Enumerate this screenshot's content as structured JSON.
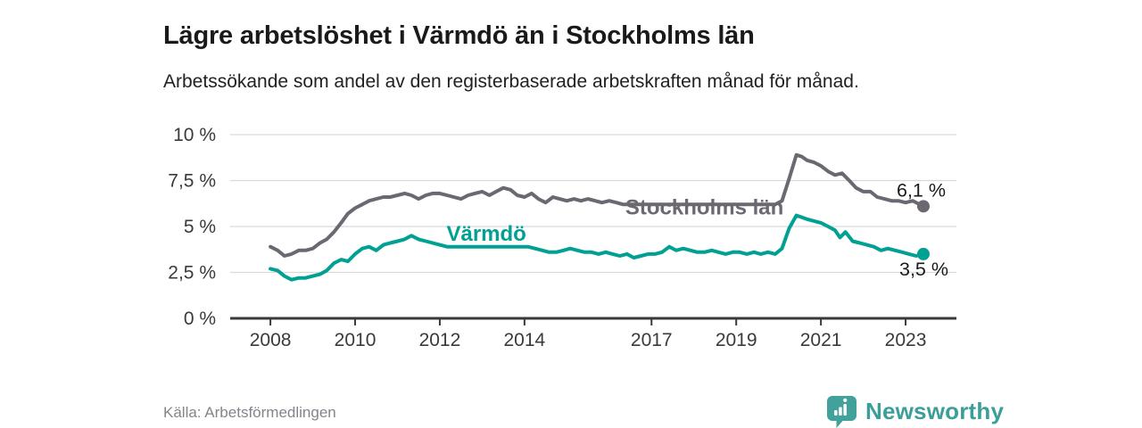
{
  "header": {
    "title": "Lägre arbetslöshet i Värmdö än i Stockholms län",
    "subtitle": "Arbetssökande som andel av den registerbaserade arbetskraften månad för månad."
  },
  "footer": {
    "source": "Källa: Arbetsförmedlingen",
    "brand": "Newsworthy",
    "brand_color": "#3c9e99"
  },
  "chart_data": {
    "type": "line",
    "title": "Lägre arbetslöshet i Värmdö än i Stockholms län",
    "subtitle": "Arbetssökande som andel av den registerbaserade arbetskraften månad för månad.",
    "grid": true,
    "legend_position": "inline",
    "ylim": [
      0,
      10
    ],
    "xlim": [
      2007.05,
      2024.2
    ],
    "y_ticks": [
      {
        "value": 10,
        "label": "10 %"
      },
      {
        "value": 7.5,
        "label": "7,5 %"
      },
      {
        "value": 5,
        "label": "5 %"
      },
      {
        "value": 2.5,
        "label": "2,5 %"
      },
      {
        "value": 0,
        "label": "0 %"
      }
    ],
    "x_ticks": [
      {
        "value": 2008,
        "label": "2008"
      },
      {
        "value": 2010,
        "label": "2010"
      },
      {
        "value": 2012,
        "label": "2012"
      },
      {
        "value": 2014,
        "label": "2014"
      },
      {
        "value": 2017,
        "label": "2017"
      },
      {
        "value": 2019,
        "label": "2019"
      },
      {
        "value": 2021,
        "label": "2021"
      },
      {
        "value": 2023,
        "label": "2023"
      }
    ],
    "axis_color": "#3a3a3a",
    "grid_color": "#d9d9d9",
    "series": [
      {
        "name": "Stockholms län",
        "color": "#6c6872",
        "end_label": "6,1 %",
        "end_value": 6.1,
        "inline_label": {
          "year": 2018.25,
          "value": 6.05
        },
        "label_gap": [
          2016.55,
          2019.9
        ],
        "end_label_offset": [
          25,
          -11
        ],
        "points": [
          [
            2008.0,
            3.9
          ],
          [
            2008.17,
            3.7
          ],
          [
            2008.33,
            3.4
          ],
          [
            2008.5,
            3.5
          ],
          [
            2008.67,
            3.7
          ],
          [
            2008.83,
            3.7
          ],
          [
            2009.0,
            3.8
          ],
          [
            2009.17,
            4.1
          ],
          [
            2009.33,
            4.3
          ],
          [
            2009.5,
            4.7
          ],
          [
            2009.67,
            5.2
          ],
          [
            2009.83,
            5.7
          ],
          [
            2010.0,
            6.0
          ],
          [
            2010.17,
            6.2
          ],
          [
            2010.33,
            6.4
          ],
          [
            2010.5,
            6.5
          ],
          [
            2010.67,
            6.6
          ],
          [
            2010.83,
            6.6
          ],
          [
            2011.0,
            6.7
          ],
          [
            2011.17,
            6.8
          ],
          [
            2011.33,
            6.7
          ],
          [
            2011.5,
            6.5
          ],
          [
            2011.67,
            6.7
          ],
          [
            2011.83,
            6.8
          ],
          [
            2012.0,
            6.8
          ],
          [
            2012.17,
            6.7
          ],
          [
            2012.33,
            6.6
          ],
          [
            2012.5,
            6.5
          ],
          [
            2012.67,
            6.7
          ],
          [
            2012.83,
            6.8
          ],
          [
            2013.0,
            6.9
          ],
          [
            2013.17,
            6.7
          ],
          [
            2013.33,
            6.9
          ],
          [
            2013.5,
            7.1
          ],
          [
            2013.67,
            7.0
          ],
          [
            2013.83,
            6.7
          ],
          [
            2014.0,
            6.6
          ],
          [
            2014.17,
            6.8
          ],
          [
            2014.33,
            6.5
          ],
          [
            2014.5,
            6.3
          ],
          [
            2014.67,
            6.6
          ],
          [
            2014.83,
            6.5
          ],
          [
            2015.0,
            6.4
          ],
          [
            2015.17,
            6.5
          ],
          [
            2015.33,
            6.4
          ],
          [
            2015.5,
            6.5
          ],
          [
            2015.67,
            6.4
          ],
          [
            2015.83,
            6.3
          ],
          [
            2016.0,
            6.4
          ],
          [
            2016.17,
            6.3
          ],
          [
            2016.33,
            6.2
          ],
          [
            2016.5,
            6.2
          ],
          [
            2019.92,
            6.2
          ],
          [
            2020.08,
            6.4
          ],
          [
            2020.25,
            7.6
          ],
          [
            2020.42,
            8.9
          ],
          [
            2020.55,
            8.8
          ],
          [
            2020.67,
            8.6
          ],
          [
            2020.83,
            8.5
          ],
          [
            2021.0,
            8.3
          ],
          [
            2021.17,
            8.0
          ],
          [
            2021.33,
            7.8
          ],
          [
            2021.5,
            7.9
          ],
          [
            2021.67,
            7.5
          ],
          [
            2021.83,
            7.1
          ],
          [
            2022.0,
            6.9
          ],
          [
            2022.17,
            6.9
          ],
          [
            2022.33,
            6.6
          ],
          [
            2022.5,
            6.5
          ],
          [
            2022.67,
            6.4
          ],
          [
            2022.83,
            6.4
          ],
          [
            2023.0,
            6.3
          ],
          [
            2023.17,
            6.4
          ],
          [
            2023.33,
            6.2
          ],
          [
            2023.42,
            6.1
          ]
        ]
      },
      {
        "name": "Värmdö",
        "color": "#00a092",
        "end_label": "3,5 %",
        "end_value": 3.5,
        "inline_label": {
          "year": 2013.1,
          "value": 4.6
        },
        "label_gap": [
          2012.2,
          2014.05
        ],
        "end_label_offset": [
          28,
          24
        ],
        "points": [
          [
            2008.0,
            2.7
          ],
          [
            2008.17,
            2.6
          ],
          [
            2008.33,
            2.3
          ],
          [
            2008.5,
            2.1
          ],
          [
            2008.67,
            2.2
          ],
          [
            2008.83,
            2.2
          ],
          [
            2009.0,
            2.3
          ],
          [
            2009.17,
            2.4
          ],
          [
            2009.33,
            2.6
          ],
          [
            2009.5,
            3.0
          ],
          [
            2009.67,
            3.2
          ],
          [
            2009.83,
            3.1
          ],
          [
            2010.0,
            3.5
          ],
          [
            2010.17,
            3.8
          ],
          [
            2010.33,
            3.9
          ],
          [
            2010.5,
            3.7
          ],
          [
            2010.67,
            4.0
          ],
          [
            2010.83,
            4.1
          ],
          [
            2011.0,
            4.2
          ],
          [
            2011.17,
            4.3
          ],
          [
            2011.33,
            4.5
          ],
          [
            2011.5,
            4.3
          ],
          [
            2011.67,
            4.2
          ],
          [
            2011.83,
            4.1
          ],
          [
            2012.0,
            4.0
          ],
          [
            2012.17,
            3.9
          ],
          [
            2014.08,
            3.9
          ],
          [
            2014.25,
            3.8
          ],
          [
            2014.42,
            3.7
          ],
          [
            2014.58,
            3.6
          ],
          [
            2014.75,
            3.6
          ],
          [
            2014.92,
            3.7
          ],
          [
            2015.08,
            3.8
          ],
          [
            2015.25,
            3.7
          ],
          [
            2015.42,
            3.6
          ],
          [
            2015.58,
            3.6
          ],
          [
            2015.75,
            3.5
          ],
          [
            2015.92,
            3.6
          ],
          [
            2016.08,
            3.5
          ],
          [
            2016.25,
            3.4
          ],
          [
            2016.42,
            3.5
          ],
          [
            2016.58,
            3.3
          ],
          [
            2016.75,
            3.4
          ],
          [
            2016.92,
            3.5
          ],
          [
            2017.08,
            3.5
          ],
          [
            2017.25,
            3.6
          ],
          [
            2017.42,
            3.9
          ],
          [
            2017.58,
            3.7
          ],
          [
            2017.75,
            3.8
          ],
          [
            2017.92,
            3.7
          ],
          [
            2018.08,
            3.6
          ],
          [
            2018.25,
            3.6
          ],
          [
            2018.42,
            3.7
          ],
          [
            2018.58,
            3.6
          ],
          [
            2018.75,
            3.5
          ],
          [
            2018.92,
            3.6
          ],
          [
            2019.08,
            3.6
          ],
          [
            2019.25,
            3.5
          ],
          [
            2019.42,
            3.6
          ],
          [
            2019.58,
            3.5
          ],
          [
            2019.75,
            3.6
          ],
          [
            2019.92,
            3.5
          ],
          [
            2020.08,
            3.8
          ],
          [
            2020.25,
            4.9
          ],
          [
            2020.42,
            5.6
          ],
          [
            2020.55,
            5.5
          ],
          [
            2020.67,
            5.4
          ],
          [
            2020.83,
            5.3
          ],
          [
            2021.0,
            5.2
          ],
          [
            2021.17,
            5.0
          ],
          [
            2021.33,
            4.8
          ],
          [
            2021.45,
            4.4
          ],
          [
            2021.58,
            4.7
          ],
          [
            2021.75,
            4.2
          ],
          [
            2021.92,
            4.1
          ],
          [
            2022.08,
            4.0
          ],
          [
            2022.25,
            3.9
          ],
          [
            2022.42,
            3.7
          ],
          [
            2022.58,
            3.8
          ],
          [
            2022.75,
            3.7
          ],
          [
            2022.92,
            3.6
          ],
          [
            2023.08,
            3.5
          ],
          [
            2023.25,
            3.4
          ],
          [
            2023.42,
            3.5
          ]
        ]
      }
    ]
  }
}
